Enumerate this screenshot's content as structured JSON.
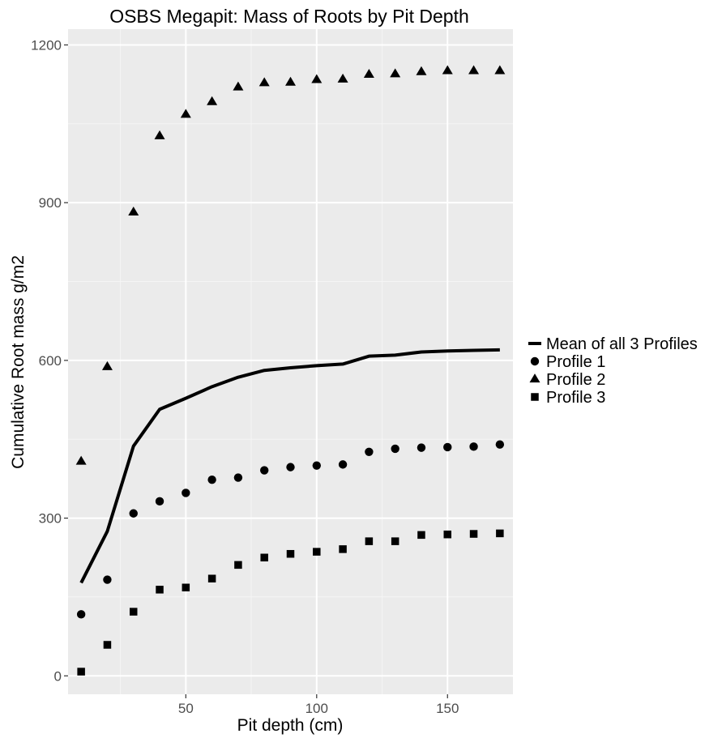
{
  "chart_data": {
    "type": "line",
    "title": "OSBS Megapit: Mass of Roots by Pit Depth",
    "xlabel": "Pit depth (cm)",
    "ylabel": "Cumulative Root mass g/m2",
    "xlim": [
      5,
      175
    ],
    "ylim": [
      -35,
      1230
    ],
    "x_ticks": [
      50,
      100,
      150
    ],
    "y_ticks": [
      0,
      300,
      600,
      900,
      1200
    ],
    "grid": true,
    "legend_position": "right",
    "x": [
      10,
      20,
      30,
      40,
      50,
      60,
      70,
      80,
      90,
      100,
      110,
      120,
      130,
      140,
      150,
      160,
      170
    ],
    "series": [
      {
        "name": "Mean of all 3 Profiles",
        "mark": "line",
        "values": [
          177,
          275,
          437,
          507,
          528,
          550,
          568,
          581,
          586,
          590,
          593,
          608,
          610,
          616,
          618,
          619,
          620
        ]
      },
      {
        "name": "Profile 1",
        "mark": "circle",
        "values": [
          117,
          183,
          309,
          332,
          348,
          373,
          377,
          391,
          397,
          400,
          402,
          426,
          432,
          434,
          435,
          436,
          440
        ]
      },
      {
        "name": "Profile 2",
        "mark": "triangle",
        "values": [
          408,
          588,
          882,
          1027,
          1068,
          1092,
          1120,
          1128,
          1129,
          1134,
          1135,
          1144,
          1145,
          1149,
          1151,
          1151,
          1151
        ]
      },
      {
        "name": "Profile 3",
        "mark": "square",
        "values": [
          8,
          59,
          122,
          164,
          168,
          185,
          211,
          225,
          232,
          236,
          241,
          256,
          256,
          268,
          269,
          270,
          271
        ]
      }
    ]
  }
}
